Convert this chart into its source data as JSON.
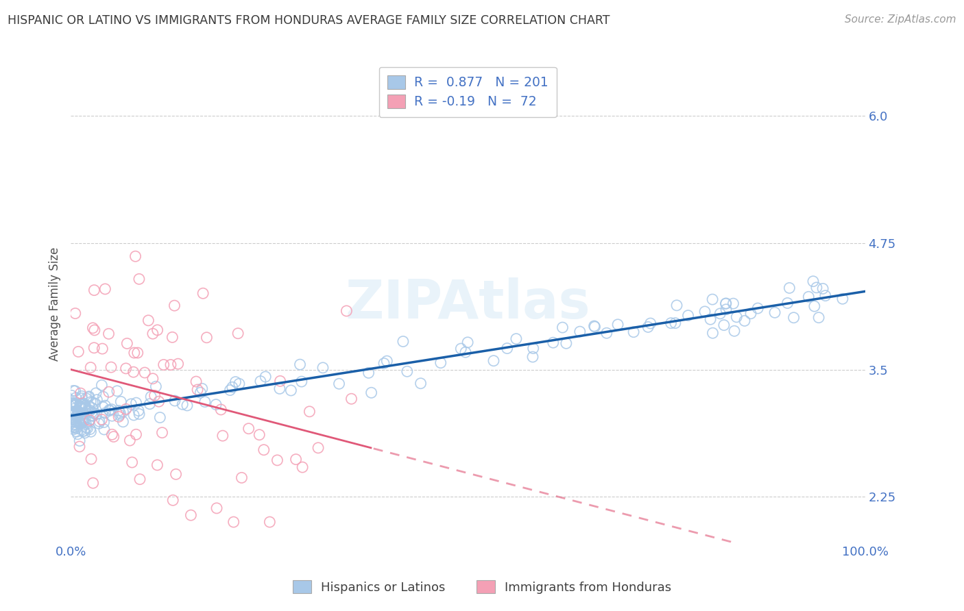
{
  "title": "HISPANIC OR LATINO VS IMMIGRANTS FROM HONDURAS AVERAGE FAMILY SIZE CORRELATION CHART",
  "source": "Source: ZipAtlas.com",
  "ylabel": "Average Family Size",
  "legend_label1": "Hispanics or Latinos",
  "legend_label2": "Immigrants from Honduras",
  "R1": 0.877,
  "N1": 201,
  "R2": -0.19,
  "N2": 72,
  "color_blue": "#a8c8e8",
  "color_pink": "#f4a0b5",
  "trendline_blue": "#1a5fa8",
  "trendline_pink": "#e05878",
  "ylim_min": 1.8,
  "ylim_max": 6.5,
  "yticks": [
    2.25,
    3.5,
    4.75,
    6.0
  ],
  "background_color": "#ffffff",
  "grid_color": "#cccccc",
  "title_color": "#3a3a3a",
  "source_color": "#999999",
  "axis_label_color": "#4472c4",
  "watermark": "ZIPAtlas",
  "seed_blue": 12,
  "seed_pink": 55
}
